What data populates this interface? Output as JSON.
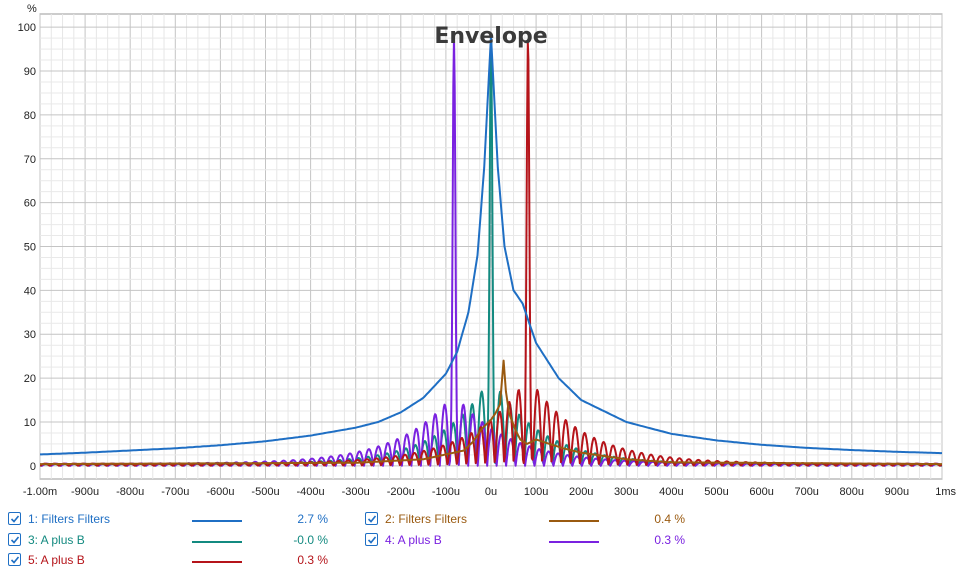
{
  "chart_data": {
    "type": "line",
    "title": "Envelope",
    "ylabel": "%",
    "xlabel": "",
    "xlim": [
      -1000,
      1000
    ],
    "ylim": [
      -3,
      103
    ],
    "grid": true,
    "x_ticks": [
      {
        "v": -1000,
        "label": "-1.00m"
      },
      {
        "v": -900,
        "label": "-900u"
      },
      {
        "v": -800,
        "label": "-800u"
      },
      {
        "v": -700,
        "label": "-700u"
      },
      {
        "v": -600,
        "label": "-600u"
      },
      {
        "v": -500,
        "label": "-500u"
      },
      {
        "v": -400,
        "label": "-400u"
      },
      {
        "v": -300,
        "label": "-300u"
      },
      {
        "v": -200,
        "label": "-200u"
      },
      {
        "v": -100,
        "label": "-100u"
      },
      {
        "v": 0,
        "label": "0u"
      },
      {
        "v": 100,
        "label": "100u"
      },
      {
        "v": 200,
        "label": "200u"
      },
      {
        "v": 300,
        "label": "300u"
      },
      {
        "v": 400,
        "label": "400u"
      },
      {
        "v": 500,
        "label": "500u"
      },
      {
        "v": 600,
        "label": "600u"
      },
      {
        "v": 700,
        "label": "700u"
      },
      {
        "v": 800,
        "label": "800u"
      },
      {
        "v": 900,
        "label": "900u"
      },
      {
        "v": 1000,
        "label": "1ms"
      }
    ],
    "y_ticks": [
      {
        "v": 0,
        "label": "0"
      },
      {
        "v": 10,
        "label": "10"
      },
      {
        "v": 20,
        "label": "20"
      },
      {
        "v": 30,
        "label": "30"
      },
      {
        "v": 40,
        "label": "40"
      },
      {
        "v": 50,
        "label": "50"
      },
      {
        "v": 60,
        "label": "60"
      },
      {
        "v": 70,
        "label": "70"
      },
      {
        "v": 80,
        "label": "80"
      },
      {
        "v": 90,
        "label": "90"
      },
      {
        "v": 100,
        "label": "100"
      }
    ],
    "series": [
      {
        "name": "1: Filters Filters",
        "color": "#1f6fc4",
        "value_label": "2.7 %",
        "checked": true,
        "points": [
          [
            -1000,
            2.6
          ],
          [
            -900,
            3.0
          ],
          [
            -800,
            3.5
          ],
          [
            -700,
            4.0
          ],
          [
            -600,
            4.7
          ],
          [
            -500,
            5.6
          ],
          [
            -400,
            6.9
          ],
          [
            -300,
            8.7
          ],
          [
            -250,
            10.0
          ],
          [
            -200,
            12.2
          ],
          [
            -150,
            15.5
          ],
          [
            -100,
            21.0
          ],
          [
            -75,
            26
          ],
          [
            -50,
            35
          ],
          [
            -30,
            48
          ],
          [
            -15,
            68
          ],
          [
            -5,
            88
          ],
          [
            0,
            98
          ],
          [
            5,
            88
          ],
          [
            15,
            68
          ],
          [
            30,
            50
          ],
          [
            50,
            40
          ],
          [
            70,
            37
          ],
          [
            100,
            28
          ],
          [
            150,
            20
          ],
          [
            200,
            15
          ],
          [
            300,
            10
          ],
          [
            400,
            7.3
          ],
          [
            500,
            5.8
          ],
          [
            600,
            4.8
          ],
          [
            700,
            4.1
          ],
          [
            800,
            3.6
          ],
          [
            900,
            3.2
          ],
          [
            1000,
            2.9
          ]
        ]
      },
      {
        "name": "2: Filters Filters",
        "color": "#9a5a10",
        "value_label": "0.4 %",
        "checked": true,
        "points": [
          [
            -1000,
            0.4
          ],
          [
            -300,
            0.7
          ],
          [
            -150,
            1.5
          ],
          [
            -60,
            3.5
          ],
          [
            -40,
            5.5
          ],
          [
            -20,
            8.5
          ],
          [
            0,
            10.5
          ],
          [
            10,
            12
          ],
          [
            20,
            14
          ],
          [
            28,
            24
          ],
          [
            33,
            17
          ],
          [
            40,
            12
          ],
          [
            55,
            8
          ],
          [
            65,
            6
          ],
          [
            80,
            5
          ],
          [
            100,
            6
          ],
          [
            130,
            5
          ],
          [
            160,
            4
          ],
          [
            200,
            3
          ],
          [
            300,
            1.5
          ],
          [
            400,
            0.8
          ],
          [
            1000,
            0.4
          ]
        ]
      },
      {
        "name": "3: A plus B",
        "color": "#138a80",
        "value_label": "-0.0 %",
        "checked": true,
        "peak": 0,
        "peak_value": 98,
        "side_amp": 20,
        "period": 21,
        "decay": 110,
        "floor": 0.4
      },
      {
        "name": "4: A plus B",
        "color": "#7a22e0",
        "value_label": "0.3 %",
        "checked": true,
        "peak": -82,
        "peak_value": 98,
        "side_amp": 16,
        "period": 21,
        "decay": 120,
        "floor": 0.5
      },
      {
        "name": "5: A plus B",
        "color": "#b5141a",
        "value_label": "0.3 %",
        "checked": true,
        "peak": 82,
        "peak_value": 98,
        "side_amp": 20,
        "period": 21,
        "decay": 120,
        "floor": 0.5
      }
    ]
  },
  "legend": {
    "items": [
      {
        "label": "1: Filters Filters",
        "value": "2.7 %",
        "color": "#1f6fc4"
      },
      {
        "label": "2: Filters Filters",
        "value": "0.4 %",
        "color": "#9a5a10"
      },
      {
        "label": "3: A plus B",
        "value": "-0.0 %",
        "color": "#138a80"
      },
      {
        "label": "4: A plus B",
        "value": "0.3 %",
        "color": "#7a22e0"
      },
      {
        "label": "5: A plus B",
        "value": "0.3 %",
        "color": "#b5141a"
      }
    ]
  }
}
